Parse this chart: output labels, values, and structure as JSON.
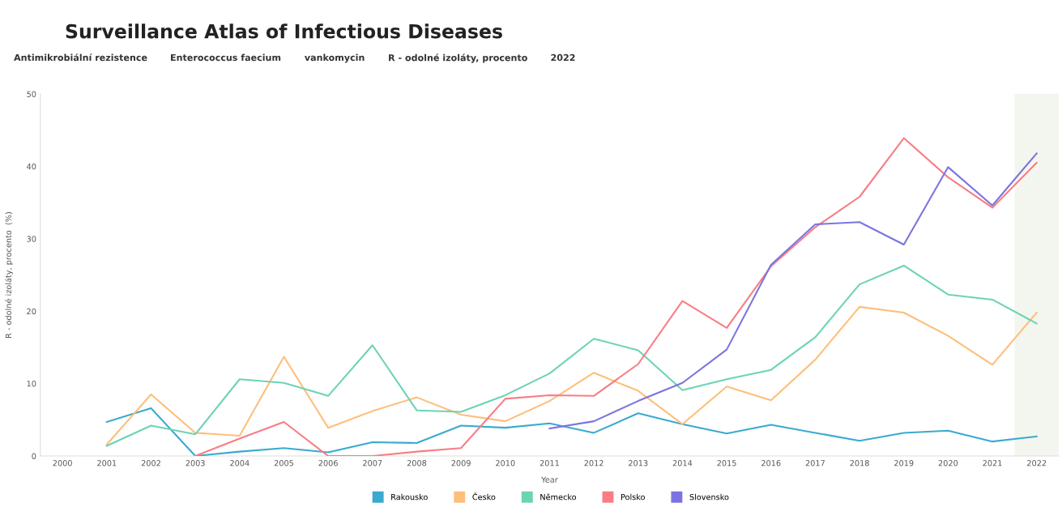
{
  "chart_data": {
    "type": "line",
    "title": "Surveillance Atlas of Infectious Diseases",
    "annotations": [
      "Antimikrobiální rezistence",
      "Enterococcus faecium",
      "vankomycin",
      "R - odolné izoláty, procento",
      "2022"
    ],
    "xlabel": "Year",
    "ylabel": "R - odolné izoláty, procento  (%)",
    "x": [
      2001,
      2002,
      2003,
      2004,
      2005,
      2006,
      2007,
      2008,
      2009,
      2010,
      2011,
      2012,
      2013,
      2014,
      2015,
      2016,
      2017,
      2018,
      2019,
      2020,
      2021,
      2022
    ],
    "series": [
      {
        "name": "Rakousko",
        "color": "#3aaacf",
        "values": [
          4.7,
          6.6,
          0,
          0.6,
          1.1,
          0.5,
          1.9,
          1.8,
          4.2,
          3.9,
          4.5,
          3.2,
          5.9,
          4.4,
          3.1,
          4.3,
          3.2,
          2.1,
          3.2,
          3.5,
          2.0,
          2.7
        ]
      },
      {
        "name": "Česko",
        "color": "#fdbf7a",
        "values": [
          1.6,
          8.5,
          3.2,
          2.8,
          13.7,
          3.9,
          6.2,
          8.1,
          5.7,
          4.8,
          7.6,
          11.5,
          9.0,
          4.4,
          9.6,
          7.7,
          13.3,
          20.6,
          19.8,
          16.6,
          12.6,
          19.8
        ]
      },
      {
        "name": "Německo",
        "color": "#6dd3b5",
        "values": [
          1.4,
          4.2,
          3.0,
          10.6,
          10.1,
          8.3,
          15.3,
          6.3,
          6.1,
          8.4,
          11.4,
          16.2,
          14.6,
          9.1,
          10.6,
          11.9,
          16.4,
          23.7,
          26.3,
          22.3,
          21.6,
          18.3
        ]
      },
      {
        "name": "Polsko",
        "color": "#f87d85",
        "values": [
          null,
          null,
          0,
          2.4,
          4.7,
          0,
          0,
          0.6,
          1.1,
          7.9,
          8.4,
          8.3,
          12.7,
          21.4,
          17.7,
          26.2,
          31.6,
          35.8,
          43.9,
          38.5,
          34.3,
          40.5
        ]
      },
      {
        "name": "Slovensko",
        "color": "#7b74e0",
        "values": [
          null,
          null,
          null,
          null,
          null,
          null,
          null,
          null,
          null,
          null,
          3.8,
          4.8,
          7.6,
          10.1,
          14.7,
          26.4,
          32.0,
          32.3,
          29.2,
          39.9,
          34.6,
          41.8
        ]
      }
    ],
    "xlim": [
      1999.5,
      2022.5
    ],
    "xticks": [
      2000,
      2001,
      2002,
      2003,
      2004,
      2005,
      2006,
      2007,
      2008,
      2009,
      2010,
      2011,
      2012,
      2013,
      2014,
      2015,
      2016,
      2017,
      2018,
      2019,
      2020,
      2021,
      2022
    ],
    "ylim": [
      0,
      50
    ],
    "yticks": [
      0,
      10,
      20,
      30,
      40,
      50
    ],
    "bands": [
      {
        "axis": "x",
        "from": 2021.5,
        "to": 2022.5,
        "color": "#f3f6ee"
      }
    ],
    "grid": false,
    "legend": "bottom",
    "marker": "none",
    "line_style": "solid"
  }
}
